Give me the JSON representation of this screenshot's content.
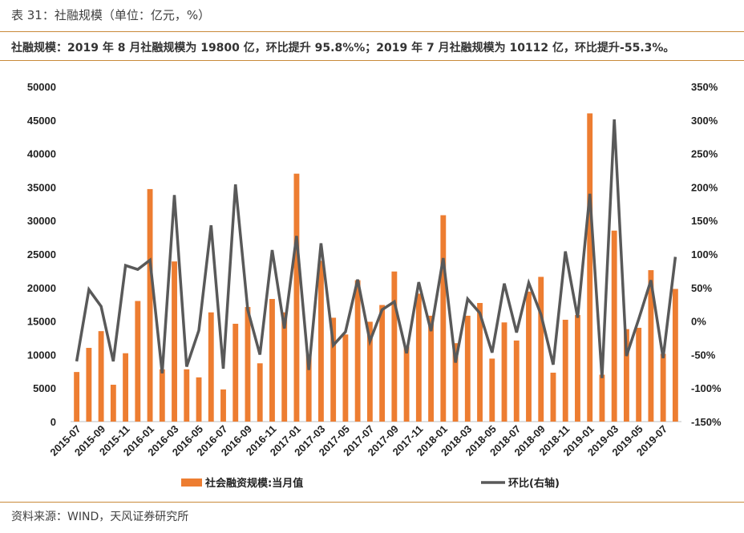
{
  "header": {
    "title": "表 31：社融规模（单位：亿元，%）",
    "subtitle": "社融规模：2019 年 8 月社融规模为 19800 亿，环比提升 95.8%%；2019 年 7 月社融规模为 10112 亿，环比提升-55.3%。"
  },
  "footer": {
    "source": "资料来源：WIND，天风证券研究所"
  },
  "colors": {
    "bar": "#ed7d31",
    "line": "#595959",
    "rule": "#c98a3a"
  },
  "chart_data": {
    "type": "bar+line",
    "x": [
      "2015-07",
      "2015-08",
      "2015-09",
      "2015-10",
      "2015-11",
      "2015-12",
      "2016-01",
      "2016-02",
      "2016-03",
      "2016-04",
      "2016-05",
      "2016-06",
      "2016-07",
      "2016-08",
      "2016-09",
      "2016-10",
      "2016-11",
      "2016-12",
      "2017-01",
      "2017-02",
      "2017-03",
      "2017-04",
      "2017-05",
      "2017-06",
      "2017-07",
      "2017-08",
      "2017-09",
      "2017-10",
      "2017-11",
      "2017-12",
      "2018-01",
      "2018-02",
      "2018-03",
      "2018-04",
      "2018-05",
      "2018-06",
      "2018-07",
      "2018-08",
      "2018-09",
      "2018-10",
      "2018-11",
      "2018-12",
      "2019-01",
      "2019-02",
      "2019-03",
      "2019-04",
      "2019-05",
      "2019-06",
      "2019-07",
      "2019-08"
    ],
    "x_tick_labels": [
      "2015-07",
      "2015-09",
      "2015-11",
      "2016-01",
      "2016-03",
      "2016-05",
      "2016-07",
      "2016-09",
      "2016-11",
      "2017-01",
      "2017-03",
      "2017-05",
      "2017-07",
      "2017-09",
      "2017-11",
      "2018-01",
      "2018-03",
      "2018-05",
      "2018-07",
      "2018-09",
      "2018-11",
      "2019-01",
      "2019-03",
      "2019-05",
      "2019-07"
    ],
    "series": [
      {
        "name": "社会融资规模:当月值",
        "type": "bar",
        "axis": "left",
        "values": [
          7400,
          11000,
          13500,
          5500,
          10200,
          18000,
          34700,
          7800,
          23900,
          7800,
          6600,
          16300,
          4800,
          14600,
          17100,
          8700,
          18300,
          16300,
          37000,
          10000,
          24000,
          15500,
          13000,
          21100,
          14900,
          17400,
          22400,
          11200,
          19100,
          15800,
          30800,
          11700,
          15800,
          17700,
          9400,
          14800,
          12100,
          19400,
          21600,
          7300,
          15200,
          15900,
          46000,
          7000,
          28500,
          13800,
          14000,
          22600,
          10112,
          19800
        ]
      },
      {
        "name": "环比(右轴)",
        "type": "line",
        "axis": "right",
        "values": [
          -60,
          47,
          22,
          -60,
          83,
          77,
          91,
          -78,
          188,
          -68,
          -14,
          143,
          -71,
          204,
          17,
          -50,
          106,
          -11,
          127,
          -73,
          116,
          -36,
          -16,
          62,
          -30,
          17,
          29,
          -48,
          58,
          -15,
          94,
          -62,
          33,
          12,
          -47,
          56,
          -17,
          57,
          10,
          -65,
          104,
          5,
          190,
          -85,
          301,
          -52,
          3,
          61,
          -55.3,
          95.8
        ]
      }
    ],
    "y_left": {
      "ylim": [
        0,
        50000
      ],
      "ticks": [
        "0",
        "5000",
        "10000",
        "15000",
        "20000",
        "25000",
        "30000",
        "35000",
        "40000",
        "45000",
        "50000"
      ]
    },
    "y_right": {
      "ylim": [
        -150,
        350
      ],
      "ticks": [
        "-150%",
        "-100%",
        "-50%",
        "0%",
        "50%",
        "100%",
        "150%",
        "200%",
        "250%",
        "300%",
        "350%"
      ]
    },
    "grid": false,
    "legend": "bottom"
  }
}
